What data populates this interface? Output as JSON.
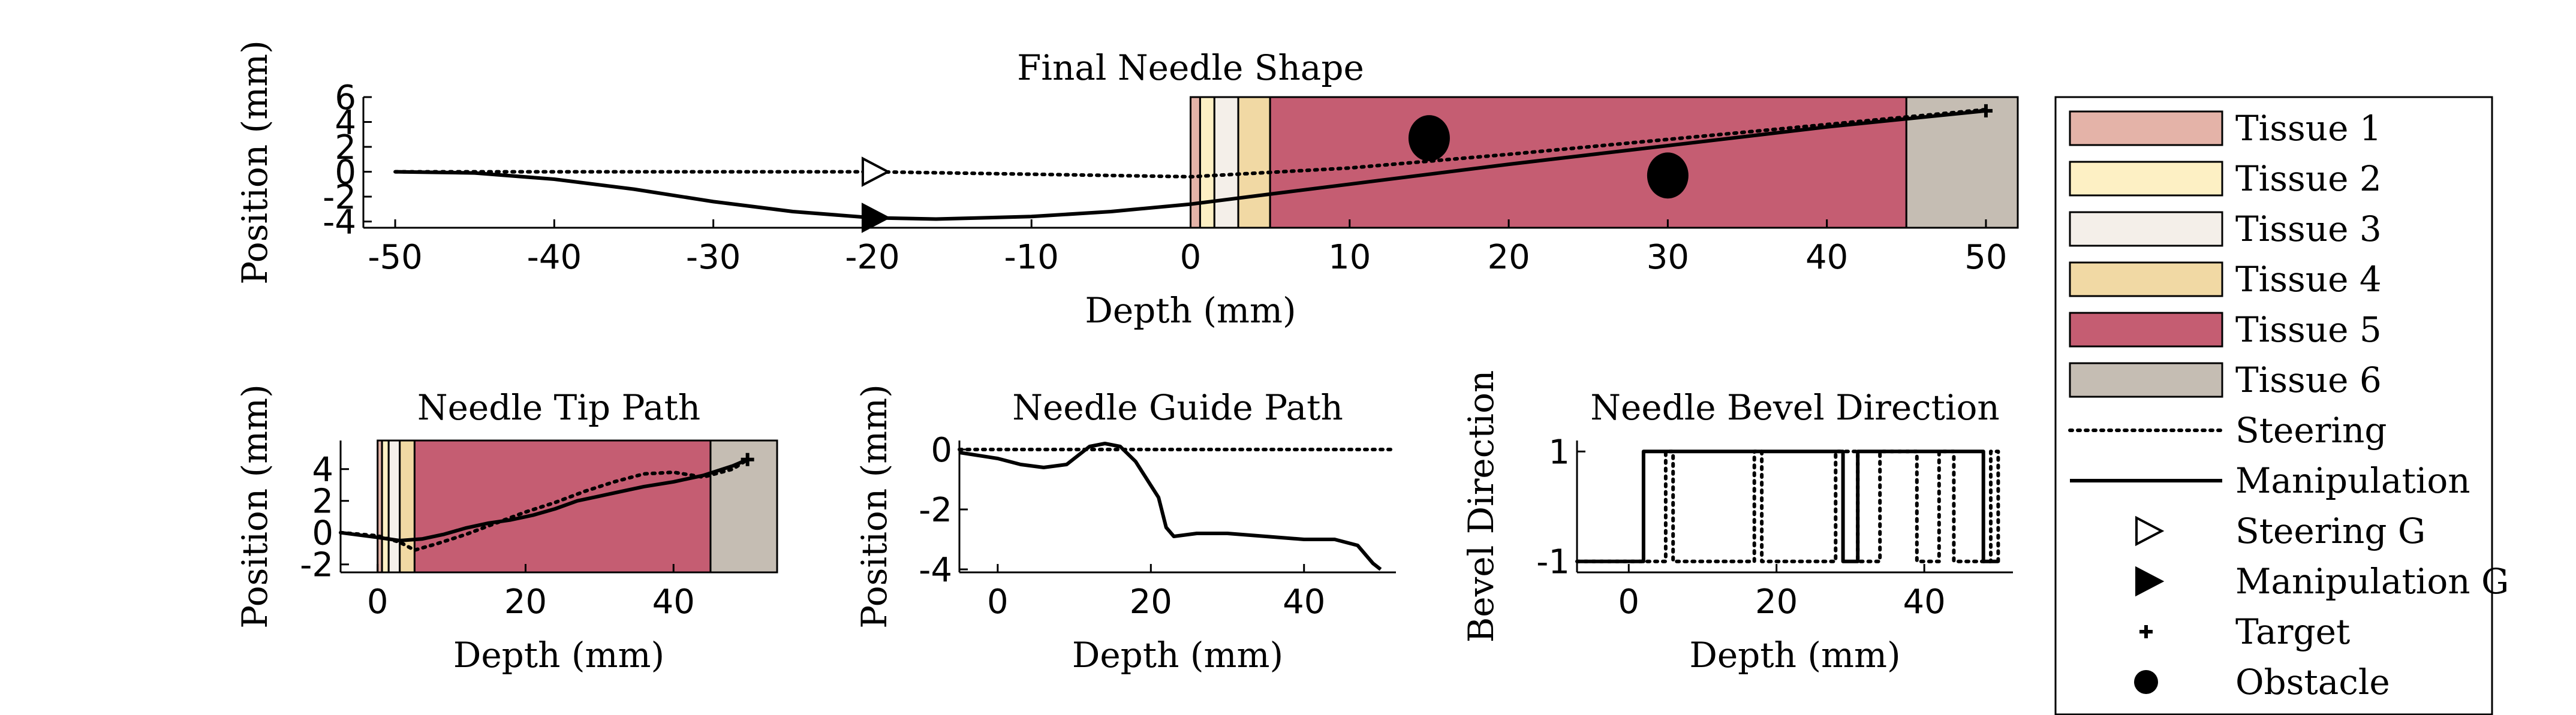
{
  "legend": {
    "items": [
      {
        "label": "Tissue 1",
        "kind": "swatch",
        "color": "#e4b3a8"
      },
      {
        "label": "Tissue 2",
        "kind": "swatch",
        "color": "#fdf0c4"
      },
      {
        "label": "Tissue 3",
        "kind": "swatch",
        "color": "#f4efe9"
      },
      {
        "label": "Tissue 4",
        "kind": "swatch",
        "color": "#f1d9a4"
      },
      {
        "label": "Tissue 5",
        "kind": "swatch",
        "color": "#c55d72"
      },
      {
        "label": "Tissue 6",
        "kind": "swatch",
        "color": "#c5bdb3"
      },
      {
        "label": "Steering",
        "kind": "dotted-line"
      },
      {
        "label": "Manipulation",
        "kind": "solid-line"
      },
      {
        "label": "Steering G",
        "kind": "open-triangle"
      },
      {
        "label": "Manipulation G",
        "kind": "filled-triangle"
      },
      {
        "label": "Target",
        "kind": "plus"
      },
      {
        "label": "Obstacle",
        "kind": "dot"
      }
    ]
  },
  "chart_data": [
    {
      "id": "shape",
      "type": "line",
      "title": "Final Needle Shape",
      "xlabel": "Depth (mm)",
      "ylabel": "Position (mm)",
      "xlim": [
        -52,
        52
      ],
      "ylim": [
        -4.5,
        6
      ],
      "xticks": [
        -50,
        -40,
        -30,
        -20,
        -10,
        0,
        10,
        20,
        30,
        40,
        50
      ],
      "yticks": [
        6,
        4,
        2,
        0,
        -2,
        -4
      ],
      "tissue_bands": [
        {
          "name": "Tissue 1",
          "from": 0,
          "to": 0.6
        },
        {
          "name": "Tissue 2",
          "from": 0.6,
          "to": 1.5
        },
        {
          "name": "Tissue 3",
          "from": 1.5,
          "to": 3
        },
        {
          "name": "Tissue 4",
          "from": 3,
          "to": 5
        },
        {
          "name": "Tissue 5",
          "from": 5,
          "to": 45
        },
        {
          "name": "Tissue 6",
          "from": 45,
          "to": 52
        }
      ],
      "series": [
        {
          "style": "dotted",
          "x": [
            -50,
            -40,
            -30,
            -20,
            -10,
            0,
            10,
            20,
            30,
            40,
            50
          ],
          "y": [
            0,
            0,
            0,
            0,
            -0.2,
            -0.4,
            0.3,
            1.4,
            2.6,
            3.8,
            5.0
          ]
        },
        {
          "style": "solid",
          "x": [
            -50,
            -45,
            -40,
            -35,
            -30,
            -25,
            -20,
            -16,
            -10,
            -5,
            0,
            5,
            10,
            20,
            30,
            40,
            50
          ],
          "y": [
            0,
            -0.1,
            -0.6,
            -1.4,
            -2.4,
            -3.2,
            -3.7,
            -3.8,
            -3.6,
            -3.2,
            -2.6,
            -1.8,
            -1.0,
            0.6,
            2.1,
            3.6,
            4.9
          ]
        }
      ],
      "markers": [
        {
          "kind": "open-triangle",
          "x": -20,
          "y": 0
        },
        {
          "kind": "filled-triangle",
          "x": -20,
          "y": -3.7
        },
        {
          "kind": "plus",
          "x": 50,
          "y": 4.9
        }
      ],
      "obstacles": [
        {
          "x": 15,
          "y": 2.7,
          "rx": 1.3,
          "ry": 1.85
        },
        {
          "x": 30,
          "y": -0.3,
          "rx": 1.3,
          "ry": 1.85
        }
      ]
    },
    {
      "id": "tip",
      "type": "line",
      "title": "Needle Tip Path",
      "xlabel": "Depth (mm)",
      "ylabel": "Position (mm)",
      "xlim": [
        -5,
        54
      ],
      "ylim": [
        -2.5,
        5.8
      ],
      "xticks": [
        0,
        20,
        40
      ],
      "yticks": [
        4,
        2,
        0,
        -2
      ],
      "tissue_bands": [
        {
          "name": "Tissue 1",
          "from": 0,
          "to": 0.6
        },
        {
          "name": "Tissue 2",
          "from": 0.6,
          "to": 1.5
        },
        {
          "name": "Tissue 3",
          "from": 1.5,
          "to": 3
        },
        {
          "name": "Tissue 4",
          "from": 3,
          "to": 5
        },
        {
          "name": "Tissue 5",
          "from": 5,
          "to": 45
        },
        {
          "name": "Tissue 6",
          "from": 45,
          "to": 54
        }
      ],
      "series": [
        {
          "style": "dotted",
          "x": [
            -5,
            0,
            3,
            5,
            8,
            12,
            16,
            20,
            24,
            28,
            32,
            36,
            40,
            44,
            48,
            50
          ],
          "y": [
            0,
            -0.2,
            -0.6,
            -1.1,
            -0.7,
            -0.1,
            0.6,
            1.3,
            1.9,
            2.6,
            3.2,
            3.7,
            3.8,
            3.5,
            4.0,
            4.6
          ]
        },
        {
          "style": "solid",
          "x": [
            -5,
            0,
            3,
            6,
            9,
            12,
            15,
            18,
            21,
            24,
            27,
            30,
            33,
            36,
            40,
            44,
            48,
            50
          ],
          "y": [
            0,
            -0.3,
            -0.5,
            -0.4,
            -0.1,
            0.3,
            0.6,
            0.8,
            1.1,
            1.5,
            2.0,
            2.3,
            2.6,
            2.9,
            3.2,
            3.6,
            4.2,
            4.6
          ]
        }
      ],
      "markers": [
        {
          "kind": "plus",
          "x": 50,
          "y": 4.6
        }
      ]
    },
    {
      "id": "guide",
      "type": "line",
      "title": "Needle Guide Path",
      "xlabel": "Depth (mm)",
      "ylabel": "Position (mm)",
      "xlim": [
        -5,
        52
      ],
      "ylim": [
        -4.1,
        0.3
      ],
      "xticks": [
        0,
        20,
        40
      ],
      "yticks": [
        0,
        -2,
        -4
      ],
      "series": [
        {
          "style": "dotted",
          "x": [
            -5,
            52
          ],
          "y": [
            0,
            0
          ]
        },
        {
          "style": "solid",
          "x": [
            -5,
            0,
            3,
            6,
            9,
            12,
            14,
            16,
            18,
            20,
            21,
            22,
            23,
            26,
            30,
            35,
            40,
            44,
            47,
            49,
            50
          ],
          "y": [
            -0.1,
            -0.3,
            -0.5,
            -0.6,
            -0.5,
            0.1,
            0.2,
            0.1,
            -0.4,
            -1.2,
            -1.6,
            -2.6,
            -2.9,
            -2.8,
            -2.8,
            -2.9,
            -3.0,
            -3.0,
            -3.2,
            -3.8,
            -4.0
          ]
        }
      ]
    },
    {
      "id": "bevel",
      "type": "line",
      "title": "Needle Bevel Direction",
      "xlabel": "Depth (mm)",
      "ylabel": "Bevel Direction",
      "xlim": [
        -7,
        52
      ],
      "ylim": [
        -1.2,
        1.2
      ],
      "xticks": [
        0,
        20,
        40
      ],
      "yticks": [
        1,
        -1
      ],
      "series": [
        {
          "style": "dotted",
          "x": [
            -7,
            5,
            5,
            6,
            6,
            17,
            17,
            18,
            18,
            28,
            28,
            31,
            31,
            34,
            34,
            39,
            39,
            42,
            42,
            44,
            44,
            49,
            49,
            50,
            50
          ],
          "y": [
            -1,
            -1,
            1,
            1,
            -1,
            -1,
            1,
            1,
            -1,
            -1,
            1,
            1,
            -1,
            -1,
            1,
            1,
            -1,
            -1,
            1,
            1,
            -1,
            -1,
            1,
            1,
            -1
          ]
        },
        {
          "style": "solid",
          "x": [
            -7,
            2,
            2,
            29,
            29,
            31,
            31,
            48,
            48,
            50
          ],
          "y": [
            -1,
            -1,
            1,
            1,
            -1,
            -1,
            1,
            1,
            -1,
            -1
          ]
        }
      ]
    }
  ]
}
